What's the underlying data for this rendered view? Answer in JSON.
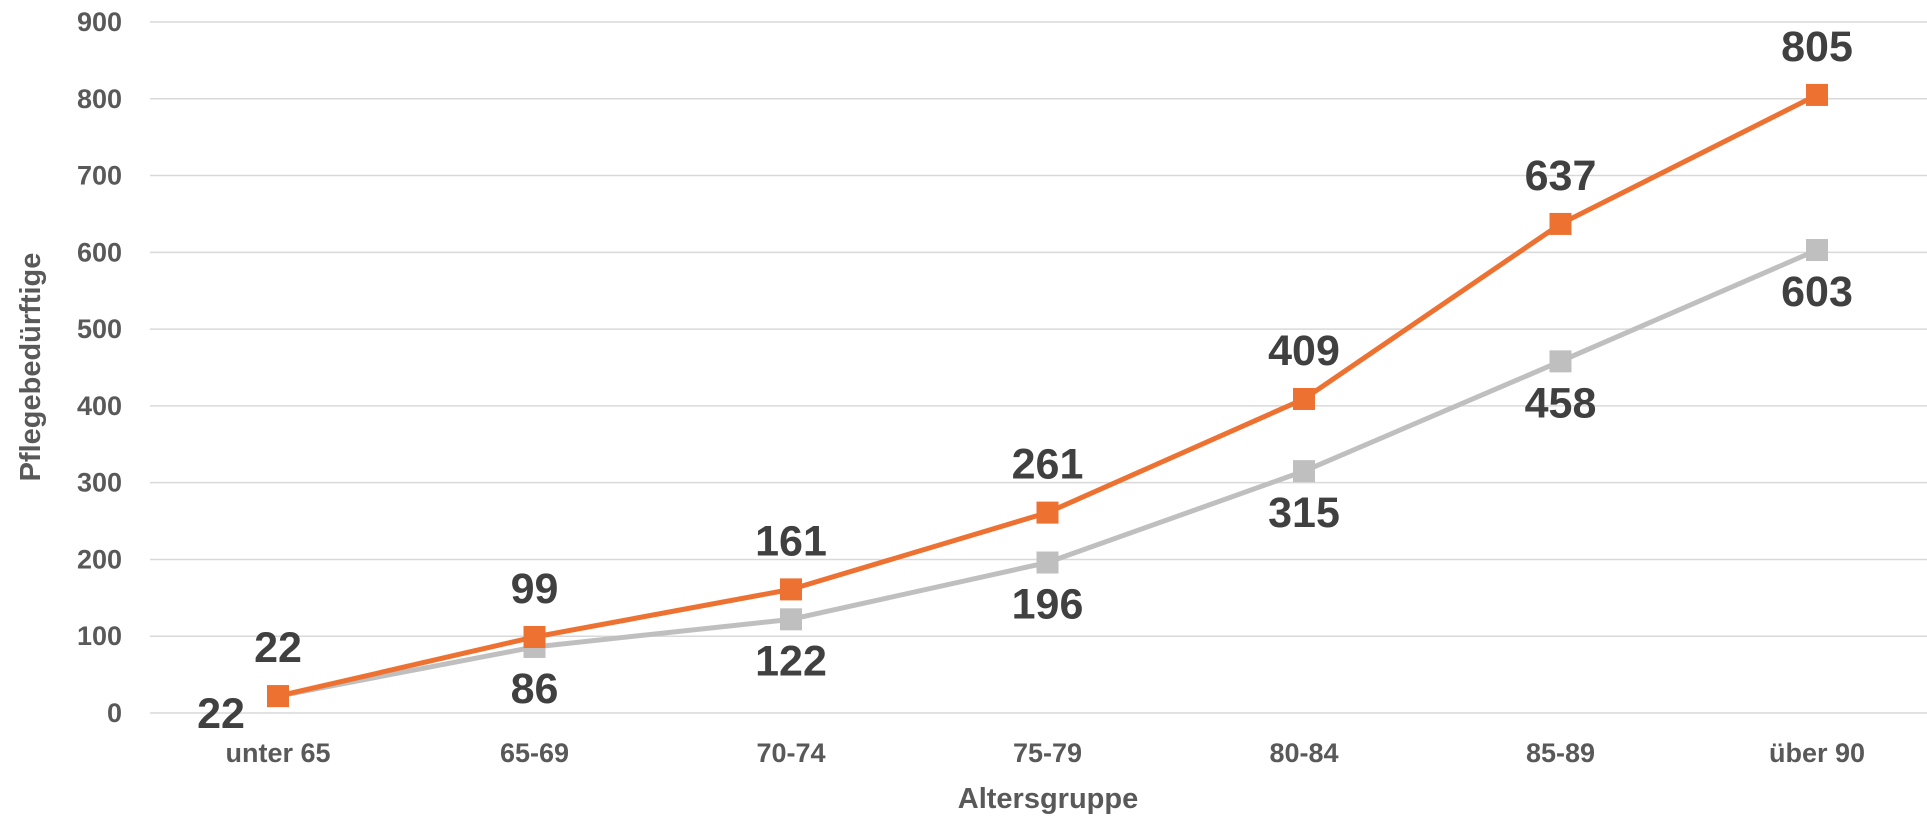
{
  "chart_data": {
    "type": "line",
    "xlabel": "Altersgruppe",
    "ylabel": "Pflegebedürftige",
    "categories": [
      "unter 65",
      "65-69",
      "70-74",
      "75-79",
      "80-84",
      "85-89",
      "über 90"
    ],
    "ylim": [
      0,
      900
    ],
    "yticks": [
      "0",
      "100",
      "200",
      "300",
      "400",
      "500",
      "600",
      "700",
      "800",
      "900"
    ],
    "grid": true,
    "legend": "none",
    "series": [
      {
        "color": "#ed7131",
        "marker": "square",
        "label_position": "above",
        "values": [
          22,
          99,
          161,
          261,
          409,
          637,
          805
        ]
      },
      {
        "color": "#bfbfbf",
        "marker": "square",
        "label_position": "below",
        "values": [
          22,
          86,
          122,
          196,
          315,
          458,
          603
        ]
      }
    ]
  }
}
